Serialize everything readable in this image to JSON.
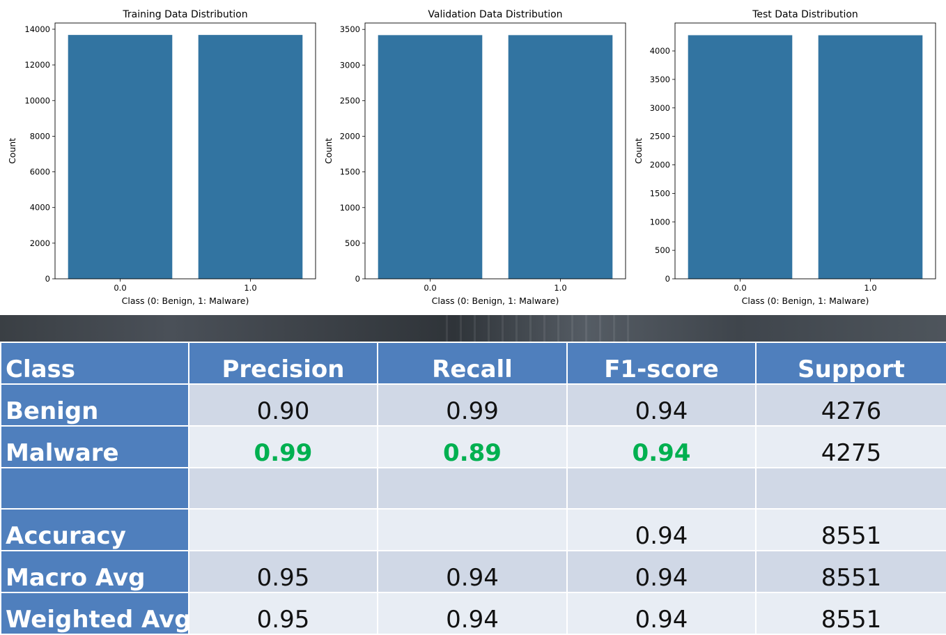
{
  "chart_data": [
    {
      "type": "bar",
      "title": "Training Data Distribution",
      "xlabel": "Class (0: Benign, 1: Malware)",
      "ylabel": "Count",
      "categories": [
        "0.0",
        "1.0"
      ],
      "values": [
        13680,
        13680
      ],
      "ylim": [
        0,
        14350
      ],
      "yticks": [
        0,
        2000,
        4000,
        6000,
        8000,
        10000,
        12000,
        14000
      ],
      "color": "#3274a1"
    },
    {
      "type": "bar",
      "title": "Validation Data Distribution",
      "xlabel": "Class (0: Benign, 1: Malware)",
      "ylabel": "Count",
      "categories": [
        "0.0",
        "1.0"
      ],
      "values": [
        3420,
        3420
      ],
      "ylim": [
        0,
        3590
      ],
      "yticks": [
        0,
        500,
        1000,
        1500,
        2000,
        2500,
        3000,
        3500
      ],
      "color": "#3274a1"
    },
    {
      "type": "bar",
      "title": "Test Data Distribution",
      "xlabel": "Class (0: Benign, 1: Malware)",
      "ylabel": "Count",
      "categories": [
        "0.0",
        "1.0"
      ],
      "values": [
        4276,
        4275
      ],
      "ylim": [
        0,
        4490
      ],
      "yticks": [
        0,
        500,
        1000,
        1500,
        2000,
        2500,
        3000,
        3500,
        4000
      ],
      "color": "#3274a1"
    }
  ],
  "table": {
    "headers": [
      "Class",
      "Precision",
      "Recall",
      "F1-score",
      "Support"
    ],
    "rows": [
      {
        "label": "Benign",
        "precision": "0.90",
        "recall": "0.99",
        "f1": "0.94",
        "support": "4276"
      },
      {
        "label": "Malware",
        "precision": "0.99",
        "recall": "0.89",
        "f1": "0.94",
        "support": "4275"
      },
      {
        "label": "",
        "precision": "",
        "recall": "",
        "f1": "",
        "support": ""
      },
      {
        "label": "Accuracy",
        "precision": "",
        "recall": "",
        "f1": "0.94",
        "support": "8551"
      },
      {
        "label": "Macro Avg",
        "precision": "0.95",
        "recall": "0.94",
        "f1": "0.94",
        "support": "8551"
      },
      {
        "label": "Weighted Avg",
        "precision": "0.95",
        "recall": "0.94",
        "f1": "0.94",
        "support": "8551"
      }
    ],
    "highlight_color": "#00b050",
    "header_color": "#4f7fbd"
  }
}
